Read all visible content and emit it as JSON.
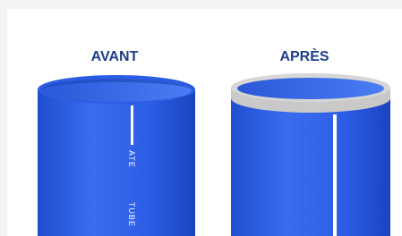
{
  "labels": {
    "before": "AVANT",
    "after": "APRÈS"
  },
  "pipe_text": [
    "ATE",
    "TUBE"
  ]
}
